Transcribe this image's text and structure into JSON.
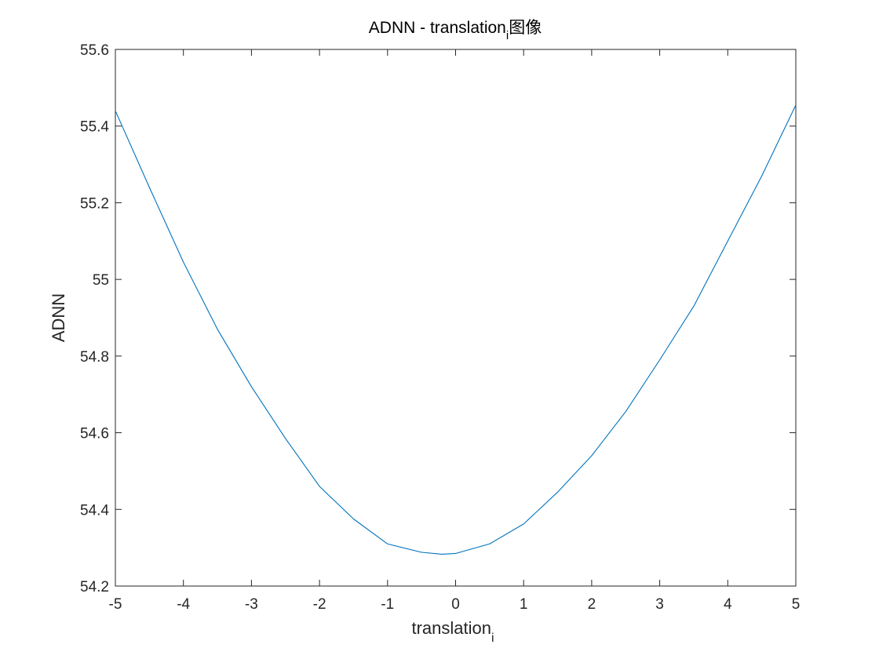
{
  "chart_data": {
    "type": "line",
    "title": "ADNN - translation",
    "title_subscript": "i",
    "title_suffix": "图像",
    "xlabel": "translation",
    "xlabel_subscript": "i",
    "ylabel": "ADNN",
    "xlim": [
      -5,
      5
    ],
    "ylim": [
      54.2,
      55.6
    ],
    "xticks": [
      -5,
      -4,
      -3,
      -2,
      -1,
      0,
      1,
      2,
      3,
      4,
      5
    ],
    "xtick_labels": [
      "-5",
      "-4",
      "-3",
      "-2",
      "-1",
      "0",
      "1",
      "2",
      "3",
      "4",
      "5"
    ],
    "yticks": [
      54.2,
      54.4,
      54.6,
      54.8,
      55,
      55.2,
      55.4,
      55.6
    ],
    "ytick_labels": [
      "54.2",
      "54.4",
      "54.6",
      "54.8",
      "55",
      "55.2",
      "55.4",
      "55.6"
    ],
    "grid": false,
    "line_color": "#0072BD",
    "axis_color": "#262626",
    "series": [
      {
        "x": [
          -5,
          -4.5,
          -4,
          -3.5,
          -3,
          -2.5,
          -2,
          -1.5,
          -1,
          -0.5,
          -0.2,
          0,
          0.5,
          1,
          1.5,
          2,
          2.5,
          3,
          3.5,
          4,
          4.5,
          5
        ],
        "values": [
          55.44,
          55.24,
          55.045,
          54.87,
          54.72,
          54.585,
          54.46,
          54.375,
          54.31,
          54.288,
          54.283,
          54.285,
          54.31,
          54.362,
          54.445,
          54.54,
          54.655,
          54.79,
          54.93,
          55.1,
          55.27,
          55.455
        ]
      }
    ]
  }
}
